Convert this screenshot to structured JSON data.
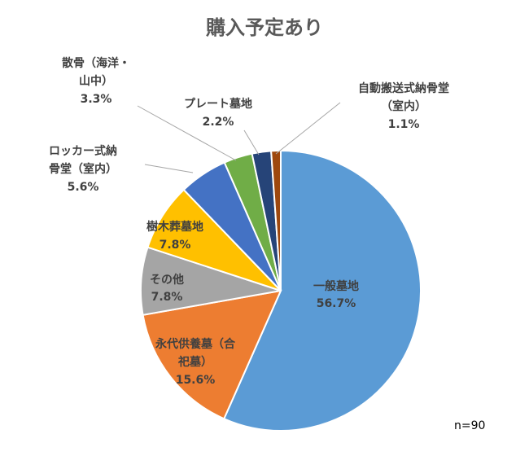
{
  "chart_data": {
    "type": "pie",
    "title": "購入予定あり",
    "note": "n=90",
    "slices": [
      {
        "key": "ippan",
        "lines": [
          "一般墓地"
        ],
        "value_label": "56.7%",
        "value": 56.7,
        "color": "#5b9bd5"
      },
      {
        "key": "eitai",
        "lines": [
          "永代供養墓（合",
          "祀墓）"
        ],
        "value_label": "15.6%",
        "value": 15.6,
        "color": "#ed7d31"
      },
      {
        "key": "sonota",
        "lines": [
          "その他"
        ],
        "value_label": "7.8%",
        "value": 7.8,
        "color": "#a5a5a5"
      },
      {
        "key": "jumoku",
        "lines": [
          "樹木葬墓地"
        ],
        "value_label": "7.8%",
        "value": 7.8,
        "color": "#ffc000"
      },
      {
        "key": "locker",
        "lines": [
          "ロッカー式納",
          "骨堂（室内）"
        ],
        "value_label": "5.6%",
        "value": 5.6,
        "color": "#4472c4"
      },
      {
        "key": "sankotsu",
        "lines": [
          "散骨（海洋・",
          "山中）"
        ],
        "value_label": "3.3%",
        "value": 3.3,
        "color": "#70ad47"
      },
      {
        "key": "plate",
        "lines": [
          "プレート墓地"
        ],
        "value_label": "2.2%",
        "value": 2.2,
        "color": "#264478"
      },
      {
        "key": "jidou",
        "lines": [
          "自動搬送式納骨堂",
          "（室内）"
        ],
        "value_label": "1.1%",
        "value": 1.1,
        "color": "#9e480e"
      }
    ]
  }
}
